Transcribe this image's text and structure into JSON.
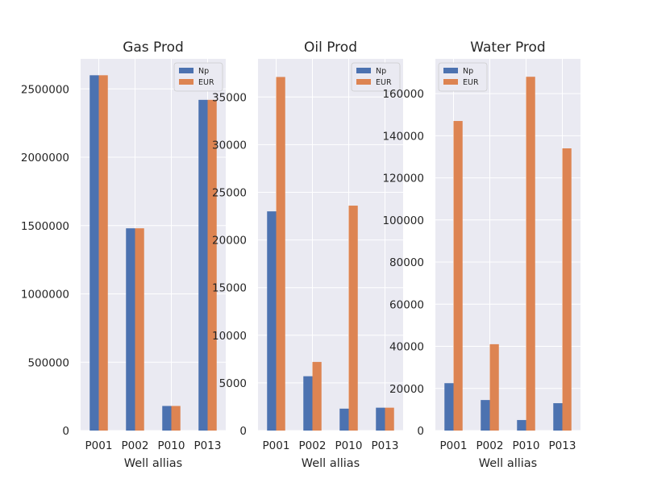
{
  "style": {
    "background": "#ffffff",
    "axes_bg": "#eaeaf2",
    "grid": "#ffffff",
    "text": "#262626",
    "np_color": "#4c72b0",
    "eur_color": "#dd8452"
  },
  "chart_data": [
    {
      "type": "bar",
      "title": "Gas Prod",
      "xlabel": "Well allias",
      "ylabel": "",
      "categories": [
        "P001",
        "P002",
        "P010",
        "P013"
      ],
      "series": [
        {
          "name": "Np",
          "values": [
            2600000,
            1480000,
            180000,
            2420000
          ]
        },
        {
          "name": "EUR",
          "values": [
            2600000,
            1480000,
            180000,
            2420000
          ]
        }
      ],
      "ylim": [
        0,
        2720000
      ],
      "yticks": [
        0,
        500000,
        1000000,
        1500000,
        2000000,
        2500000
      ],
      "ytick_labels": [
        "0",
        "500000",
        "1000000",
        "1500000",
        "2000000",
        "2500000"
      ],
      "grid": true,
      "legend_position": "top-right"
    },
    {
      "type": "bar",
      "title": "Oil Prod",
      "xlabel": "Well allias",
      "ylabel": "",
      "categories": [
        "P001",
        "P002",
        "P010",
        "P013"
      ],
      "series": [
        {
          "name": "Np",
          "values": [
            23000,
            5700,
            2300,
            2400
          ]
        },
        {
          "name": "EUR",
          "values": [
            37100,
            7200,
            23600,
            2400
          ]
        }
      ],
      "ylim": [
        0,
        39000
      ],
      "yticks": [
        0,
        5000,
        10000,
        15000,
        20000,
        25000,
        30000,
        35000
      ],
      "ytick_labels": [
        "0",
        "5000",
        "10000",
        "15000",
        "20000",
        "25000",
        "30000",
        "35000"
      ],
      "grid": true,
      "legend_position": "top-right"
    },
    {
      "type": "bar",
      "title": "Water Prod",
      "xlabel": "Well allias",
      "ylabel": "",
      "categories": [
        "P001",
        "P002",
        "P010",
        "P013"
      ],
      "series": [
        {
          "name": "Np",
          "values": [
            22500,
            14500,
            5000,
            13000
          ]
        },
        {
          "name": "EUR",
          "values": [
            147000,
            41000,
            168000,
            134000
          ]
        }
      ],
      "ylim": [
        0,
        176500
      ],
      "yticks": [
        0,
        20000,
        40000,
        60000,
        80000,
        100000,
        120000,
        140000,
        160000
      ],
      "ytick_labels": [
        "0",
        "20000",
        "40000",
        "60000",
        "80000",
        "100000",
        "120000",
        "140000",
        "160000"
      ],
      "grid": true,
      "legend_position": "top-left"
    }
  ]
}
